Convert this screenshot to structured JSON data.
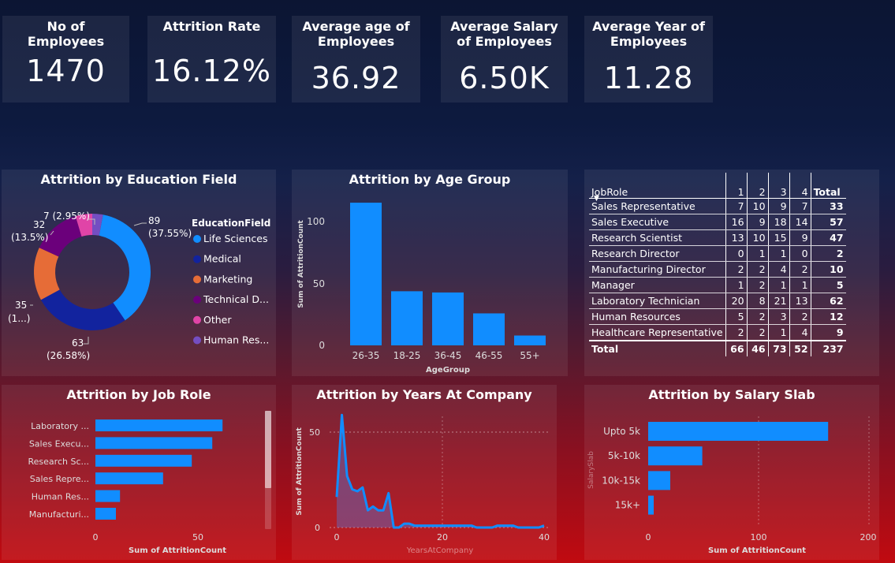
{
  "kpis": [
    {
      "label": "No of Employees",
      "value": "1470"
    },
    {
      "label": "Attrition Rate",
      "value": "16.12%"
    },
    {
      "label": "Average age of Employees",
      "value": "36.92"
    },
    {
      "label": "Average Salary of Employees",
      "value": "6.50K"
    },
    {
      "label": "Average Year of Employees",
      "value": "11.28"
    }
  ],
  "education": {
    "title": "Attrition by Education Field",
    "legend_title": "EducationField",
    "legend": [
      "Life Sciences",
      "Medical",
      "Marketing",
      "Technical D...",
      "Other",
      "Human Res..."
    ],
    "slice_labels": [
      {
        "value": "89",
        "pct": "(37.55%)"
      },
      {
        "value": "63",
        "pct": "(26.58%)"
      },
      {
        "value": "35",
        "pct": "(1...)"
      },
      {
        "value": "32",
        "pct": "(13.5%)"
      },
      {
        "value": "7 (2.95%)",
        "pct": ""
      }
    ]
  },
  "age": {
    "title": "Attrition by Age Group",
    "ylabel": "Sum of AttritionCount",
    "xlabel": "AgeGroup",
    "yticks": [
      "100",
      "50",
      "0"
    ]
  },
  "matrix": {
    "header_label": "JobRole",
    "columns": [
      "1",
      "2",
      "3",
      "4",
      "Total"
    ],
    "rows": [
      {
        "role": "Sales Representative",
        "values": [
          "7",
          "10",
          "9",
          "7",
          "33"
        ]
      },
      {
        "role": "Sales Executive",
        "values": [
          "16",
          "9",
          "18",
          "14",
          "57"
        ]
      },
      {
        "role": "Research Scientist",
        "values": [
          "13",
          "10",
          "15",
          "9",
          "47"
        ]
      },
      {
        "role": "Research Director",
        "values": [
          "0",
          "1",
          "1",
          "0",
          "2"
        ]
      },
      {
        "role": "Manufacturing Director",
        "values": [
          "2",
          "2",
          "4",
          "2",
          "10"
        ]
      },
      {
        "role": "Manager",
        "values": [
          "1",
          "2",
          "1",
          "1",
          "5"
        ]
      },
      {
        "role": "Laboratory Technician",
        "values": [
          "20",
          "8",
          "21",
          "13",
          "62"
        ]
      },
      {
        "role": "Human Resources",
        "values": [
          "5",
          "2",
          "3",
          "2",
          "12"
        ]
      },
      {
        "role": "Healthcare Representative",
        "values": [
          "2",
          "2",
          "1",
          "4",
          "9"
        ]
      }
    ],
    "total_row": {
      "role": "Total",
      "values": [
        "66",
        "46",
        "73",
        "52",
        "237"
      ]
    }
  },
  "jobrole": {
    "title": "Attrition by Job Role",
    "xlabel": "Sum of AttritionCount",
    "xticks": [
      "0",
      "50"
    ]
  },
  "years": {
    "title": "Attrition by Years At Company",
    "ylabel": "Sum of AttritionCount",
    "xlabel": "YearsAtCompany",
    "yticks": [
      "50",
      "0"
    ],
    "xticks": [
      "0",
      "20",
      "40"
    ]
  },
  "salary": {
    "title": "Attrition by Salary Slab",
    "ylabel": "SalarySlab",
    "xlabel": "Sum of AttritionCount",
    "xticks": [
      "0",
      "100",
      "200"
    ]
  },
  "chart_data": [
    {
      "type": "pie",
      "title": "Attrition by Education Field",
      "categories": [
        "Life Sciences",
        "Medical",
        "Marketing",
        "Technical Degree",
        "Other",
        "Human Resources"
      ],
      "values": [
        89,
        63,
        35,
        32,
        11,
        7
      ],
      "colors": [
        "#118DFF",
        "#12239E",
        "#E66C37",
        "#6B007B",
        "#E044A7",
        "#744EC2"
      ]
    },
    {
      "type": "bar",
      "title": "Attrition by Age Group",
      "categories": [
        "26-35",
        "18-25",
        "36-45",
        "46-55",
        "55+"
      ],
      "values": [
        116,
        44,
        43,
        26,
        8
      ],
      "ylim": [
        0,
        120
      ],
      "xlabel": "AgeGroup",
      "ylabel": "Sum of AttritionCount"
    },
    {
      "type": "bar",
      "title": "Attrition by Job Role",
      "categories": [
        "Laboratory ...",
        "Sales Execu...",
        "Research Sc...",
        "Sales Repre...",
        "Human Res...",
        "Manufacturi..."
      ],
      "values": [
        62,
        57,
        47,
        33,
        12,
        10
      ],
      "xlim": [
        0,
        70
      ],
      "xlabel": "Sum of AttritionCount"
    },
    {
      "type": "area",
      "title": "Attrition by Years At Company",
      "x": [
        0,
        1,
        2,
        3,
        4,
        5,
        6,
        7,
        8,
        9,
        10,
        11,
        12,
        13,
        14,
        15,
        16,
        17,
        18,
        19,
        20,
        21,
        22,
        23,
        24,
        25,
        26,
        27,
        28,
        29,
        30,
        31,
        32,
        33,
        34,
        35,
        36,
        37,
        38,
        39,
        40
      ],
      "values": [
        16,
        59,
        27,
        20,
        19,
        21,
        9,
        11,
        9,
        9,
        18,
        0,
        0,
        2,
        2,
        1,
        1,
        1,
        1,
        1,
        1,
        1,
        1,
        1,
        1,
        1,
        1,
        0,
        0,
        0,
        0,
        1,
        1,
        1,
        1,
        0,
        0,
        0,
        0,
        0,
        1
      ],
      "xlim": [
        0,
        40
      ],
      "ylim": [
        0,
        60
      ],
      "xlabel": "YearsAtCompany",
      "ylabel": "Sum of AttritionCount"
    },
    {
      "type": "bar",
      "title": "Attrition by Salary Slab",
      "categories": [
        "Upto 5k",
        "5k-10k",
        "10k-15k",
        "15k+"
      ],
      "values": [
        163,
        49,
        20,
        5
      ],
      "xlim": [
        0,
        200
      ],
      "xlabel": "Sum of AttritionCount",
      "ylabel": "SalarySlab"
    }
  ]
}
